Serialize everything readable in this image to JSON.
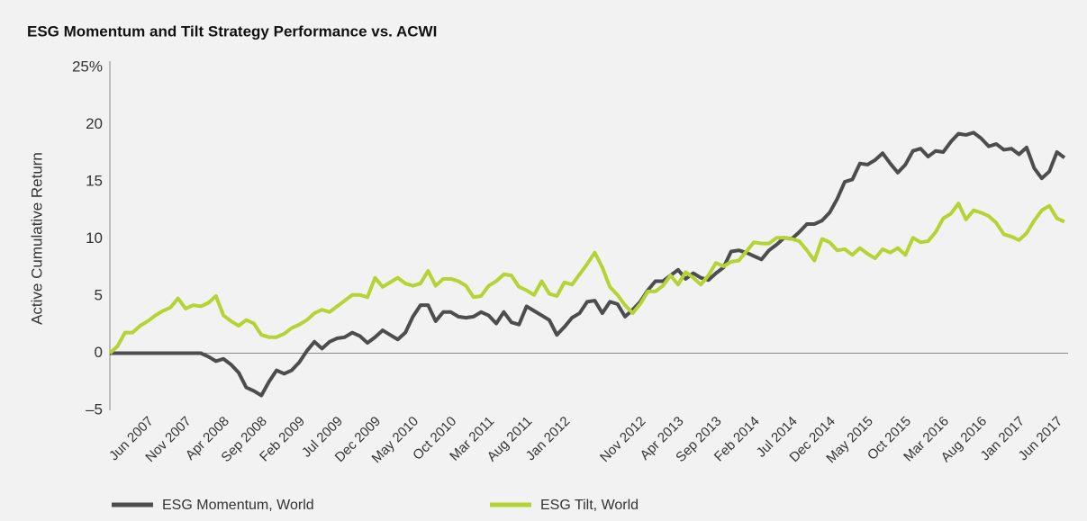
{
  "chart_data": {
    "type": "line",
    "title": "ESG Momentum and Tilt Strategy Performance vs. ACWI",
    "y_label": "Active Cumulative Return",
    "categories": [
      null,
      null,
      null,
      null,
      null,
      "Jun 2007",
      null,
      null,
      null,
      null,
      "Nov 2007",
      null,
      null,
      null,
      null,
      "Apr 2008",
      null,
      null,
      null,
      null,
      "Sep 2008",
      null,
      null,
      null,
      null,
      "Feb 2009",
      null,
      null,
      null,
      null,
      "Jul 2009",
      null,
      null,
      null,
      null,
      "Dec 2009",
      null,
      null,
      null,
      null,
      "May 2010",
      null,
      null,
      null,
      null,
      "Oct 2010",
      null,
      null,
      null,
      null,
      "Mar 2011",
      null,
      null,
      null,
      null,
      "Aug 2011",
      null,
      null,
      null,
      null,
      "Jan 2012",
      null,
      null,
      null,
      null,
      null,
      null,
      null,
      null,
      null,
      "Nov 2012",
      null,
      null,
      null,
      null,
      "Apr 2013",
      null,
      null,
      null,
      null,
      "Sep 2013",
      null,
      null,
      null,
      null,
      "Feb 2014",
      null,
      null,
      null,
      null,
      "Jul 2014",
      null,
      null,
      null,
      null,
      "Dec 2014",
      null,
      null,
      null,
      null,
      "May 2015",
      null,
      null,
      null,
      null,
      "Oct 2015",
      null,
      null,
      null,
      null,
      "Mar 2016",
      null,
      null,
      null,
      null,
      "Aug 2016",
      null,
      null,
      null,
      null,
      "Jan 2017",
      null,
      null,
      null,
      null,
      "Jun 2017",
      null
    ],
    "series": [
      {
        "name": "ESG Momentum, World",
        "color": "#4d4d4f",
        "values": [
          0,
          0,
          0,
          0,
          0,
          0,
          0,
          0,
          0,
          0,
          0,
          0,
          0,
          -0.3,
          -0.7,
          -0.5,
          -1.0,
          -1.7,
          -3.0,
          -3.3,
          -3.7,
          -2.5,
          -1.5,
          -1.8,
          -1.5,
          -0.8,
          0.2,
          1.0,
          0.4,
          1.0,
          1.3,
          1.4,
          1.8,
          1.5,
          0.9,
          1.4,
          2.0,
          1.6,
          1.2,
          1.8,
          3.2,
          4.2,
          4.2,
          2.8,
          3.6,
          3.6,
          3.2,
          3.1,
          3.2,
          3.6,
          3.3,
          2.6,
          3.6,
          2.7,
          2.5,
          4.1,
          3.7,
          3.3,
          2.9,
          1.6,
          2.3,
          3.1,
          3.5,
          4.5,
          4.6,
          3.5,
          4.5,
          4.3,
          3.2,
          3.8,
          4.5,
          5.5,
          6.3,
          6.3,
          6.8,
          7.3,
          6.5,
          7.0,
          6.6,
          6.4,
          7.0,
          7.5,
          8.9,
          9.0,
          8.8,
          8.5,
          8.2,
          9.0,
          9.5,
          10.1,
          10.0,
          10.6,
          11.3,
          11.3,
          11.6,
          12.3,
          13.5,
          15.0,
          15.2,
          16.6,
          16.5,
          16.9,
          17.5,
          16.6,
          15.8,
          16.5,
          17.7,
          17.9,
          17.2,
          17.7,
          17.6,
          18.5,
          19.2,
          19.1,
          19.3,
          18.8,
          18.1,
          18.3,
          17.8,
          17.9,
          17.4,
          18.0,
          16.2,
          15.3,
          15.9,
          17.6,
          17.1
        ]
      },
      {
        "name": "ESG Tilt, World",
        "color": "#b5d334",
        "values": [
          0,
          0.6,
          1.8,
          1.8,
          2.4,
          2.8,
          3.3,
          3.7,
          4.0,
          4.8,
          3.9,
          4.2,
          4.1,
          4.4,
          5.0,
          3.3,
          2.8,
          2.4,
          2.9,
          2.6,
          1.6,
          1.4,
          1.4,
          1.7,
          2.2,
          2.5,
          2.9,
          3.5,
          3.8,
          3.6,
          4.1,
          4.6,
          5.1,
          5.1,
          4.9,
          6.6,
          5.8,
          6.2,
          6.6,
          6.1,
          5.9,
          6.1,
          7.2,
          5.9,
          6.5,
          6.5,
          6.3,
          5.9,
          4.9,
          5.0,
          5.9,
          6.3,
          6.9,
          6.8,
          5.8,
          5.5,
          5.1,
          6.3,
          5.2,
          5.0,
          6.2,
          6.0,
          6.9,
          7.8,
          8.8,
          7.5,
          5.8,
          5.1,
          4.2,
          3.5,
          4.3,
          5.4,
          5.4,
          5.9,
          6.8,
          6.0,
          7.1,
          6.6,
          6.0,
          6.8,
          7.9,
          7.6,
          8.0,
          8.1,
          8.9,
          9.7,
          9.6,
          9.6,
          10.1,
          10.1,
          10.0,
          9.8,
          9.0,
          8.1,
          10.0,
          9.7,
          9.0,
          9.1,
          8.6,
          9.2,
          8.7,
          8.3,
          9.1,
          8.8,
          9.2,
          8.6,
          10.1,
          9.7,
          9.8,
          10.6,
          11.8,
          12.2,
          13.1,
          11.7,
          12.5,
          12.3,
          12.0,
          11.4,
          10.4,
          10.2,
          9.9,
          10.5,
          11.6,
          12.5,
          12.9,
          11.8,
          11.5
        ]
      }
    ],
    "ylim": [
      -5,
      25
    ],
    "yticks": [
      {
        "value": -5,
        "label": "–5"
      },
      0,
      5,
      10,
      15,
      20,
      {
        "value": 25,
        "label": "25%"
      }
    ],
    "grid": false,
    "legend": "bottom"
  }
}
